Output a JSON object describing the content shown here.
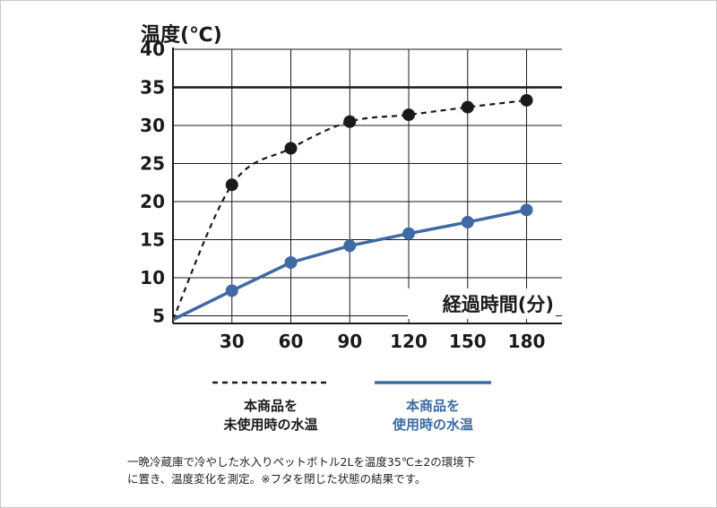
{
  "chart_data": {
    "type": "line",
    "ylabel": "温度(℃)",
    "xlabel": "経過時間(分)",
    "ylim": [
      4,
      40
    ],
    "xlim": [
      0,
      198
    ],
    "yticks": [
      5,
      10,
      15,
      20,
      25,
      30,
      35,
      40
    ],
    "xticks": [
      30,
      60,
      90,
      120,
      150,
      180
    ],
    "reference_line": 35,
    "grid": true,
    "series": [
      {
        "name": "本商品を未使用時の水温",
        "name_lines": [
          "本商品を",
          "未使用時の水温"
        ],
        "style": "dashed",
        "color": "#1a1a1a",
        "start": [
          0,
          4.5
        ],
        "x": [
          30,
          60,
          90,
          120,
          150,
          180
        ],
        "y": [
          22.2,
          27.0,
          30.5,
          31.4,
          32.4,
          33.3
        ]
      },
      {
        "name": "本商品を使用時の水温",
        "name_lines": [
          "本商品を",
          "使用時の水温"
        ],
        "style": "solid",
        "color": "#3f6aa3",
        "start": [
          0,
          4.5
        ],
        "x": [
          30,
          60,
          90,
          120,
          150,
          180
        ],
        "y": [
          8.3,
          12.0,
          14.2,
          15.8,
          17.3,
          18.9
        ]
      }
    ]
  },
  "footnote": {
    "line1": "一晩冷蔵庫で冷やした水入りペットボトル2Lを温度35℃±2の環境下",
    "line2": "に置き、温度変化を測定。※フタを閉じた状態の結果です。"
  }
}
